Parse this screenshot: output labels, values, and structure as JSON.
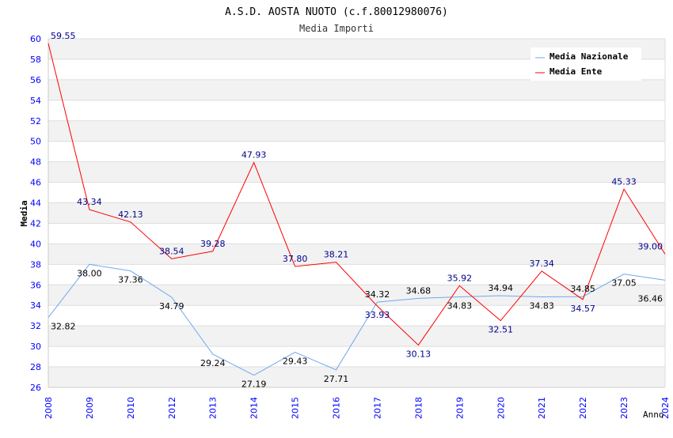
{
  "chart_data": {
    "type": "line",
    "title": "A.S.D. AOSTA NUOTO (c.f.80012980076)",
    "subtitle": "Media Importi",
    "xlabel": "Anno",
    "ylabel": "Media",
    "ylim": [
      26,
      60
    ],
    "yticks": [
      26,
      28,
      30,
      32,
      34,
      36,
      38,
      40,
      42,
      44,
      46,
      48,
      50,
      52,
      54,
      56,
      58,
      60
    ],
    "categories": [
      "2008",
      "2009",
      "2010",
      "2012",
      "2013",
      "2014",
      "2015",
      "2016",
      "2017",
      "2018",
      "2019",
      "2020",
      "2021",
      "2022",
      "2023",
      "2024"
    ],
    "legend_position": "top-right",
    "series": [
      {
        "name": "Media Nazionale",
        "color": "#6fa8f0",
        "label_color": "#000000",
        "values": [
          32.82,
          38.0,
          37.36,
          34.79,
          29.24,
          27.19,
          29.43,
          27.71,
          34.32,
          34.68,
          34.83,
          34.94,
          34.83,
          34.85,
          37.05,
          36.46
        ]
      },
      {
        "name": "Media Ente",
        "color": "#ff0000",
        "label_color": "#00008b",
        "values": [
          59.55,
          43.34,
          42.13,
          38.54,
          39.28,
          47.93,
          37.8,
          38.21,
          33.93,
          30.13,
          35.92,
          32.51,
          37.34,
          34.57,
          45.33,
          39.0
        ]
      }
    ]
  }
}
